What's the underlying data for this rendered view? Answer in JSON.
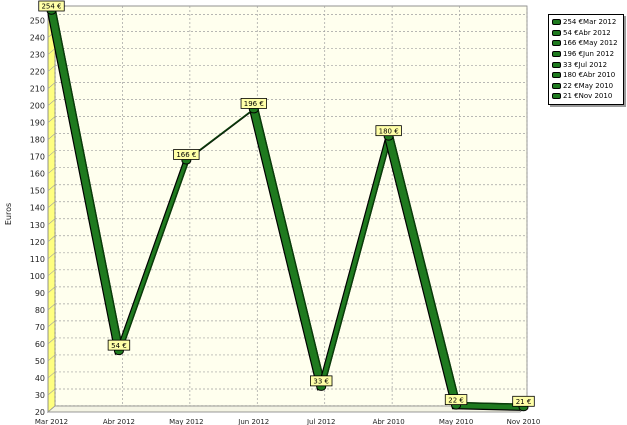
{
  "chart_data": {
    "type": "line",
    "ylabel": "Euros",
    "ylim": [
      20,
      255
    ],
    "yticks": [
      20,
      30,
      40,
      50,
      60,
      70,
      80,
      90,
      100,
      110,
      120,
      130,
      140,
      150,
      160,
      170,
      180,
      190,
      200,
      210,
      220,
      230,
      240,
      250
    ],
    "categories": [
      "Mar 2012",
      "Abr 2012",
      "May 2012",
      "Jun 2012",
      "Jul 2012",
      "Abr 2010",
      "May 2010",
      "Nov 2010"
    ],
    "values": [
      254,
      54,
      166,
      196,
      33,
      180,
      22,
      21
    ],
    "data_labels": [
      "254 €",
      "54 €",
      "166 €",
      "196 €",
      "33 €",
      "180 €",
      "22 €",
      "21 €"
    ],
    "legend": {
      "placement": "right",
      "entries": [
        "254 €Mar 2012",
        "54 €Abr 2012",
        "166 €May 2012",
        "196 €Jun 2012",
        "33 €Jul 2012",
        "180 €Abr 2010",
        "22 €May 2010",
        "21 €Nov 2010"
      ]
    },
    "grid": true,
    "colors": {
      "line": "#1f7a1f",
      "line_dark": "#0a3d0a",
      "line_edge": "#000000",
      "back_wall": "#ffffee",
      "side_wall": "#ffff80",
      "grid": "#a0a0a0",
      "label_fill": "#ffffa8"
    }
  }
}
